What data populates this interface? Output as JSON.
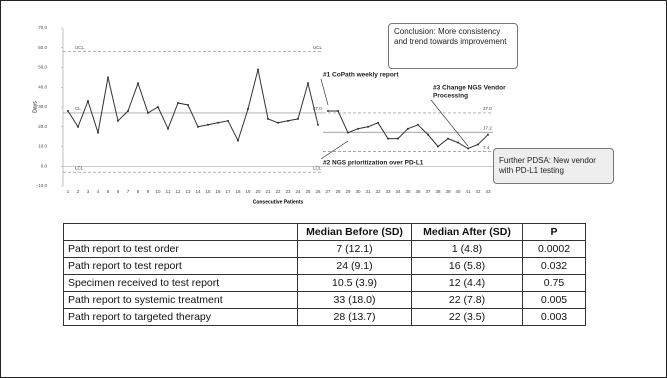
{
  "chart_data": {
    "type": "line",
    "y_label": "Days",
    "x_label": "Consecutive Patients",
    "categories": [
      1,
      2,
      3,
      4,
      5,
      6,
      7,
      8,
      9,
      10,
      11,
      12,
      13,
      14,
      15,
      16,
      17,
      18,
      19,
      20,
      21,
      22,
      23,
      24,
      25,
      26,
      27,
      28,
      29,
      30,
      31,
      32,
      33,
      34,
      35,
      36,
      37,
      38,
      39,
      40,
      41,
      42,
      43
    ],
    "series": [
      {
        "color": "#333333",
        "values": [
          28,
          20,
          33,
          17,
          45,
          23,
          28,
          42,
          27,
          30,
          19,
          32,
          31,
          20,
          21,
          22,
          23,
          13,
          29,
          49,
          24,
          22,
          23,
          24,
          42,
          21,
          null,
          null,
          null,
          null,
          null,
          null,
          null,
          null,
          null,
          null,
          null,
          null,
          null,
          null,
          null,
          null,
          null
        ]
      },
      {
        "color": "#333333",
        "values": [
          null,
          null,
          null,
          null,
          null,
          null,
          null,
          null,
          null,
          null,
          null,
          null,
          null,
          null,
          null,
          null,
          null,
          null,
          null,
          null,
          null,
          null,
          null,
          null,
          null,
          null,
          28,
          28,
          17,
          19,
          20,
          22,
          14,
          14,
          19,
          21,
          16,
          10,
          14,
          12,
          9,
          11,
          16
        ]
      }
    ],
    "ylim": [
      -10,
      70
    ],
    "yticks": [
      {
        "value": -10,
        "label": "-10.0"
      },
      {
        "value": 0,
        "label": "0.0"
      },
      {
        "value": 10,
        "label": "10.0"
      },
      {
        "value": 20,
        "label": "20.0"
      },
      {
        "value": 30,
        "label": "30.0"
      },
      {
        "value": 40,
        "label": "40.0"
      },
      {
        "value": 50,
        "label": "50.0"
      },
      {
        "value": 60,
        "label": "60.0"
      },
      {
        "value": 70,
        "label": "70.0"
      }
    ],
    "control_lines": [
      {
        "start": 1,
        "end": 26,
        "value": 58,
        "left_label": "UCL",
        "right_label": "UCL",
        "dashed": true
      },
      {
        "start": 1,
        "end": 26,
        "value": 27,
        "left_label": "CL",
        "right_label": "27.0",
        "dashed": false
      },
      {
        "start": 1,
        "end": 26,
        "value": -3,
        "left_label": "LCL",
        "right_label": "LCL",
        "dashed": true
      },
      {
        "start": 27,
        "end": 43,
        "value": 27,
        "right_label": "27.0",
        "dashed": true
      },
      {
        "start": 27,
        "end": 43,
        "value": 17.2,
        "right_label": "17.2",
        "dashed": false
      },
      {
        "start": 27,
        "end": 43,
        "value": 7.4,
        "right_label": "7.4",
        "dashed": true
      }
    ],
    "annotations": [
      {
        "lines": [
          "#1 CoPath weekly report"
        ],
        "at": 27
      },
      {
        "lines": [
          "#2 NGS prioritization over PD-L1"
        ],
        "at": 29
      },
      {
        "lines": [
          "#3 Change NGS Vendor",
          "Processing"
        ],
        "at": 41
      }
    ]
  },
  "callouts": [
    "Conclusion: More consistency and trend towards improvement",
    "Further PDSA: New vendor with PD-L1 testing"
  ],
  "table": {
    "header": [
      null,
      "Median Before (SD)",
      "Median After (SD)",
      "P"
    ],
    "rows": [
      [
        "Path report to test order",
        "7 (12.1)",
        "1 (4.8)",
        "0.0002"
      ],
      [
        "Path report to test report",
        "24 (9.1)",
        "16 (5.8)",
        "0.032"
      ],
      [
        "Specimen received to test report",
        "10.5 (3.9)",
        "12 (4.4)",
        "0.75"
      ],
      [
        "Path report to systemic treatment",
        "33 (18.0)",
        "22 (7.8)",
        "0.005"
      ],
      [
        "Path report to targeted therapy",
        "28 (13.7)",
        "22 (3.5)",
        "0.003"
      ]
    ]
  }
}
